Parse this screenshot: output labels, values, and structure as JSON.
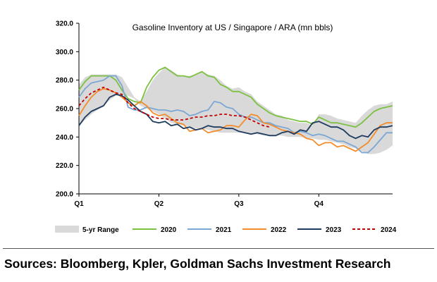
{
  "chart_data": {
    "type": "line",
    "title": "Gasoline Inventory at US / Singapore / ARA (mn bbls)",
    "ylim": [
      200,
      320
    ],
    "yticks": [
      "200.0",
      "220.0",
      "240.0",
      "260.0",
      "280.0",
      "300.0",
      "320.0"
    ],
    "ytick_values": [
      200,
      220,
      240,
      260,
      280,
      300,
      320
    ],
    "xlim": [
      1,
      52
    ],
    "xticks": [
      "Q1",
      "Q2",
      "Q3",
      "Q4"
    ],
    "xtick_weeks": [
      1,
      14,
      27,
      40
    ],
    "grid": false,
    "legend_position": "bottom",
    "range": {
      "name": "5-yr Range",
      "color": "#d9d9d9",
      "x": [
        1,
        2,
        3,
        4,
        5,
        6,
        7,
        8,
        9,
        10,
        11,
        12,
        13,
        14,
        15,
        16,
        17,
        18,
        19,
        20,
        21,
        22,
        23,
        24,
        25,
        26,
        27,
        28,
        29,
        30,
        31,
        32,
        33,
        34,
        35,
        36,
        37,
        38,
        39,
        40,
        41,
        42,
        43,
        44,
        45,
        46,
        47,
        48,
        49,
        50,
        51,
        52
      ],
      "low": [
        248,
        252,
        256,
        259,
        262,
        266,
        269,
        270,
        269,
        267,
        262,
        260,
        258,
        256,
        253,
        250,
        249,
        248,
        247,
        246,
        246,
        245,
        244,
        243,
        243,
        243,
        243,
        243,
        242,
        242,
        241,
        241,
        241,
        241,
        240,
        240,
        240,
        239,
        239,
        238,
        238,
        237,
        236,
        235,
        233,
        232,
        230,
        228,
        228,
        229,
        231,
        234
      ],
      "high": [
        277,
        282,
        284,
        284,
        284,
        284,
        284,
        282,
        275,
        268,
        265,
        272,
        280,
        285,
        289,
        287,
        284,
        283,
        283,
        284,
        286,
        284,
        283,
        280,
        276,
        274,
        275,
        272,
        270,
        265,
        262,
        259,
        256,
        255,
        252,
        251,
        250,
        250,
        248,
        256,
        256,
        255,
        253,
        252,
        251,
        250,
        255,
        259,
        262,
        263,
        263,
        265
      ]
    },
    "series": [
      {
        "name": "2020",
        "color": "#7cc142",
        "dash": "solid",
        "x": [
          1,
          2,
          3,
          4,
          5,
          6,
          7,
          8,
          9,
          10,
          11,
          12,
          13,
          14,
          15,
          16,
          17,
          18,
          19,
          20,
          21,
          22,
          23,
          24,
          25,
          26,
          27,
          28,
          29,
          30,
          31,
          32,
          33,
          34,
          35,
          36,
          37,
          38,
          39,
          40,
          41,
          42,
          43,
          44,
          45,
          46,
          47,
          48,
          49,
          50,
          51,
          52
        ],
        "values": [
          273,
          279,
          283,
          283,
          283,
          283,
          280,
          273,
          267,
          265,
          264,
          275,
          282,
          287,
          289,
          286,
          283,
          283,
          282,
          284,
          286,
          283,
          282,
          277,
          275,
          272,
          272,
          270,
          268,
          263,
          260,
          257,
          255,
          254,
          253,
          252,
          251,
          251,
          249,
          254,
          252,
          250,
          250,
          249,
          248,
          247,
          250,
          254,
          258,
          260,
          261,
          262
        ]
      },
      {
        "name": "2021",
        "color": "#7ba7d4",
        "dash": "solid",
        "x": [
          1,
          2,
          3,
          4,
          5,
          6,
          7,
          8,
          9,
          10,
          11,
          12,
          13,
          14,
          15,
          16,
          17,
          18,
          19,
          20,
          21,
          22,
          23,
          24,
          25,
          26,
          27,
          28,
          29,
          30,
          31,
          32,
          33,
          34,
          35,
          36,
          37,
          38,
          39,
          40,
          41,
          42,
          43,
          44,
          45,
          46,
          47,
          48,
          49,
          50,
          51,
          52
        ],
        "values": [
          268,
          274,
          278,
          279,
          280,
          283,
          283,
          276,
          261,
          259,
          259,
          261,
          260,
          259,
          259,
          258,
          259,
          258,
          255,
          256,
          258,
          259,
          265,
          264,
          261,
          260,
          256,
          254,
          254,
          252,
          250,
          250,
          248,
          247,
          246,
          243,
          244,
          243,
          241,
          242,
          241,
          239,
          237,
          237,
          235,
          233,
          229,
          229,
          233,
          238,
          243,
          243
        ]
      },
      {
        "name": "2022",
        "color": "#f28c2c",
        "dash": "solid",
        "x": [
          1,
          2,
          3,
          4,
          5,
          6,
          7,
          8,
          9,
          10,
          11,
          12,
          13,
          14,
          15,
          16,
          17,
          18,
          19,
          20,
          21,
          22,
          23,
          24,
          25,
          26,
          27,
          28,
          29,
          30,
          31,
          32,
          33,
          34,
          35,
          36,
          37,
          38,
          39,
          40,
          41,
          42,
          43,
          44,
          45,
          46,
          47,
          48,
          49,
          50,
          51,
          52
        ],
        "values": [
          255,
          262,
          268,
          272,
          274,
          273,
          271,
          268,
          264,
          262,
          265,
          262,
          257,
          255,
          256,
          253,
          250,
          249,
          244,
          245,
          246,
          243,
          244,
          245,
          248,
          248,
          247,
          252,
          256,
          255,
          250,
          249,
          247,
          245,
          244,
          243,
          242,
          239,
          238,
          234,
          236,
          236,
          233,
          234,
          232,
          230,
          233,
          236,
          242,
          248,
          250,
          250
        ]
      },
      {
        "name": "2023",
        "color": "#1f3a5f",
        "dash": "solid",
        "x": [
          1,
          2,
          3,
          4,
          5,
          6,
          7,
          8,
          9,
          10,
          11,
          12,
          13,
          14,
          15,
          16,
          17,
          18,
          19,
          20,
          21,
          22,
          23,
          24,
          25,
          26,
          27,
          28,
          29,
          30,
          31,
          32,
          33,
          34,
          35,
          36,
          37,
          38,
          39,
          40,
          41,
          42,
          43,
          44,
          45,
          46,
          47,
          48,
          49,
          50,
          51,
          52
        ],
        "values": [
          248,
          254,
          258,
          260,
          262,
          268,
          270,
          269,
          266,
          262,
          258,
          256,
          251,
          250,
          251,
          248,
          249,
          246,
          247,
          245,
          246,
          248,
          247,
          247,
          246,
          246,
          244,
          243,
          242,
          243,
          242,
          241,
          241,
          243,
          244,
          242,
          245,
          244,
          250,
          251,
          249,
          247,
          247,
          245,
          241,
          239,
          241,
          240,
          245,
          247,
          247,
          248
        ]
      },
      {
        "name": "2024",
        "color": "#c00000",
        "dash": "dashed",
        "x": [
          1,
          2,
          3,
          4,
          5,
          6,
          7,
          8,
          9,
          10,
          11,
          12,
          13,
          14,
          15,
          16,
          17,
          18,
          19,
          20,
          21,
          22,
          23,
          24,
          25,
          26,
          27,
          28,
          29,
          30,
          31,
          32
        ],
        "values": [
          262,
          267,
          271,
          273,
          275,
          273,
          271,
          270,
          264,
          260,
          258,
          256,
          254,
          253,
          253,
          252,
          252,
          252,
          253,
          254,
          254,
          255,
          255,
          256,
          256,
          255,
          255,
          254,
          252,
          250,
          248,
          247
        ]
      }
    ]
  },
  "legend": {
    "range_label": "5-yr Range",
    "series_labels": [
      "2020",
      "2021",
      "2022",
      "2023",
      "2024"
    ]
  },
  "footer": {
    "sources": "Sources: Bloomberg, Kpler, Goldman Sachs Investment Research"
  }
}
